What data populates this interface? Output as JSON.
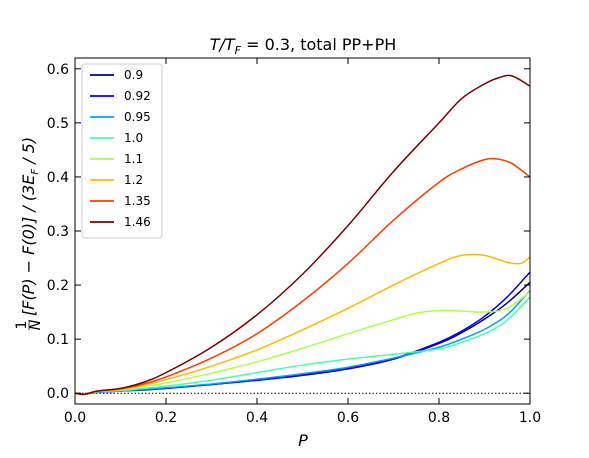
{
  "chart_data": {
    "type": "line",
    "title": "T/T_F = 0.3, total PP+PH",
    "title_parts": {
      "lhs": "T/T",
      "sub": "F",
      "rest": " = 0.3, total PP+PH"
    },
    "xlabel": "P",
    "ylabel": "(1/N)[F(P) − F(0)] / (3E_F / 5)",
    "ylabel_parts": {
      "frac_num": "1",
      "frac_den": "N",
      "a": "[F(P) − F(0)] / (3E",
      "sub": "F",
      "b": " / 5)"
    },
    "xlim": [
      0.0,
      1.0
    ],
    "ylim": [
      -0.02,
      0.62
    ],
    "xticks": [
      0.0,
      0.2,
      0.4,
      0.6,
      0.8,
      1.0
    ],
    "xtick_labels": [
      "0.0",
      "0.2",
      "0.4",
      "0.6",
      "0.8",
      "1.0"
    ],
    "yticks": [
      0.0,
      0.1,
      0.2,
      0.3,
      0.4,
      0.5,
      0.6
    ],
    "ytick_labels": [
      "0.0",
      "0.1",
      "0.2",
      "0.3",
      "0.4",
      "0.5",
      "0.6"
    ],
    "reference_line": {
      "y": 0.0,
      "style": "dotted",
      "color": "#000000"
    },
    "legend_position": "top-left",
    "series": [
      {
        "name": "0.9",
        "color": "#00007f",
        "x": [
          0.0,
          0.02,
          0.05,
          0.1,
          0.15,
          0.2,
          0.3,
          0.4,
          0.5,
          0.6,
          0.7,
          0.8,
          0.85,
          0.9,
          0.95,
          1.0
        ],
        "y": [
          0.0,
          -0.002,
          0.002,
          0.004,
          0.006,
          0.009,
          0.016,
          0.024,
          0.033,
          0.045,
          0.063,
          0.092,
          0.112,
          0.137,
          0.167,
          0.205
        ]
      },
      {
        "name": "0.92",
        "color": "#0000ff",
        "x": [
          0.0,
          0.02,
          0.05,
          0.1,
          0.15,
          0.2,
          0.3,
          0.4,
          0.5,
          0.6,
          0.7,
          0.8,
          0.85,
          0.9,
          0.95,
          1.0
        ],
        "y": [
          0.0,
          -0.002,
          0.002,
          0.004,
          0.007,
          0.009,
          0.016,
          0.024,
          0.034,
          0.046,
          0.064,
          0.094,
          0.115,
          0.142,
          0.178,
          0.224
        ]
      },
      {
        "name": "0.95",
        "color": "#00a0ff",
        "x": [
          0.0,
          0.02,
          0.05,
          0.1,
          0.15,
          0.2,
          0.3,
          0.4,
          0.5,
          0.6,
          0.7,
          0.8,
          0.85,
          0.9,
          0.95,
          1.0
        ],
        "y": [
          0.0,
          -0.002,
          0.002,
          0.004,
          0.007,
          0.01,
          0.017,
          0.026,
          0.036,
          0.048,
          0.065,
          0.085,
          0.1,
          0.118,
          0.145,
          0.19
        ]
      },
      {
        "name": "1.0",
        "color": "#49ffad",
        "x": [
          0.0,
          0.02,
          0.05,
          0.1,
          0.15,
          0.2,
          0.3,
          0.4,
          0.5,
          0.6,
          0.7,
          0.8,
          0.85,
          0.9,
          0.95,
          1.0
        ],
        "y": [
          0.0,
          -0.002,
          0.003,
          0.005,
          0.009,
          0.013,
          0.024,
          0.038,
          0.052,
          0.063,
          0.072,
          0.082,
          0.094,
          0.11,
          0.135,
          0.178
        ]
      },
      {
        "name": "1.1",
        "color": "#adff49",
        "x": [
          0.0,
          0.02,
          0.05,
          0.1,
          0.15,
          0.2,
          0.3,
          0.4,
          0.5,
          0.6,
          0.7,
          0.75,
          0.8,
          0.85,
          0.9,
          0.95,
          1.0
        ],
        "y": [
          0.0,
          -0.002,
          0.003,
          0.006,
          0.012,
          0.019,
          0.037,
          0.058,
          0.083,
          0.11,
          0.136,
          0.148,
          0.153,
          0.152,
          0.15,
          0.157,
          0.188
        ]
      },
      {
        "name": "1.2",
        "color": "#ffb900",
        "x": [
          0.0,
          0.02,
          0.05,
          0.1,
          0.15,
          0.2,
          0.3,
          0.4,
          0.5,
          0.6,
          0.7,
          0.8,
          0.85,
          0.9,
          0.95,
          0.98,
          1.0
        ],
        "y": [
          0.0,
          -0.002,
          0.003,
          0.007,
          0.015,
          0.025,
          0.05,
          0.08,
          0.117,
          0.157,
          0.2,
          0.24,
          0.255,
          0.255,
          0.242,
          0.24,
          0.252
        ]
      },
      {
        "name": "1.35",
        "color": "#ff3b00",
        "x": [
          0.0,
          0.02,
          0.05,
          0.1,
          0.15,
          0.2,
          0.3,
          0.4,
          0.5,
          0.6,
          0.7,
          0.8,
          0.85,
          0.9,
          0.93,
          0.96,
          1.0
        ],
        "y": [
          0.0,
          -0.002,
          0.004,
          0.008,
          0.017,
          0.03,
          0.065,
          0.11,
          0.17,
          0.24,
          0.32,
          0.39,
          0.415,
          0.432,
          0.433,
          0.425,
          0.4
        ]
      },
      {
        "name": "1.46",
        "color": "#7f0000",
        "x": [
          0.0,
          0.02,
          0.05,
          0.1,
          0.15,
          0.2,
          0.3,
          0.4,
          0.5,
          0.6,
          0.7,
          0.8,
          0.85,
          0.9,
          0.93,
          0.96,
          1.0
        ],
        "y": [
          0.0,
          -0.002,
          0.004,
          0.009,
          0.02,
          0.038,
          0.085,
          0.145,
          0.22,
          0.31,
          0.41,
          0.5,
          0.545,
          0.572,
          0.583,
          0.587,
          0.568
        ]
      }
    ]
  }
}
